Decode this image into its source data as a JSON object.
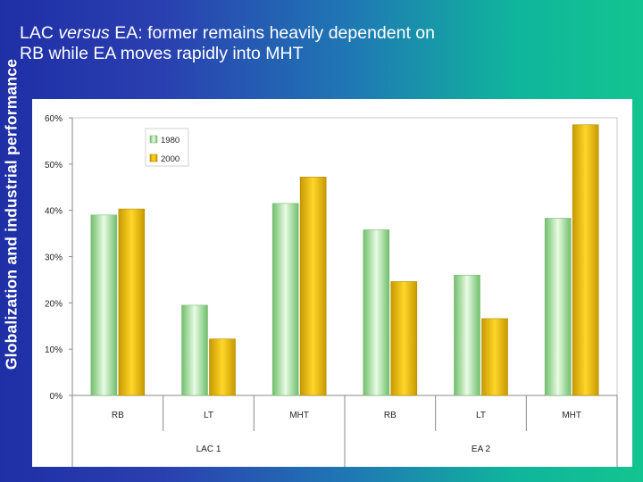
{
  "slide": {
    "side_title": "Globalization and industrial performance",
    "heading_line1_a": "LAC ",
    "heading_line1_em": "versus",
    "heading_line1_b": " EA: former remains heavily dependent on",
    "heading_line2": "RB while EA moves rapidly into MHT"
  },
  "colors": {
    "series_1980": "#a8e6a0",
    "series_2000": "#f2c200",
    "plot_background": "#ffffff",
    "panel_background": "#ffffff"
  },
  "chart_data": {
    "type": "bar",
    "categories": [
      "RB",
      "LT",
      "MHT",
      "RB",
      "LT",
      "MHT"
    ],
    "groups": [
      {
        "label": "LAC 1",
        "categories": [
          "RB",
          "LT",
          "MHT"
        ]
      },
      {
        "label": "EA 2",
        "categories": [
          "RB",
          "LT",
          "MHT"
        ]
      }
    ],
    "series": [
      {
        "name": "1980",
        "values": [
          39,
          19.5,
          41.5,
          35.8,
          26,
          38.3
        ]
      },
      {
        "name": "2000",
        "values": [
          40.3,
          12.2,
          47.2,
          24.6,
          16.6,
          58.5
        ]
      }
    ],
    "yticks": [
      "0%",
      "10%",
      "20%",
      "30%",
      "40%",
      "50%",
      "60%"
    ],
    "ylim": [
      0,
      60
    ],
    "ylabel": "",
    "xlabel": "",
    "title": "",
    "legend": {
      "entries": [
        "1980",
        "2000"
      ],
      "placement": "top-left"
    },
    "grid": false
  }
}
